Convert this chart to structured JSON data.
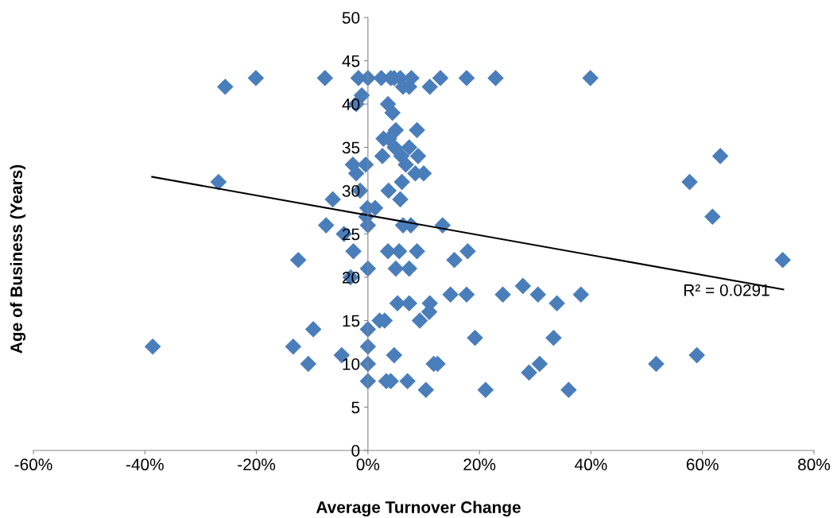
{
  "chart_data": {
    "type": "scatter",
    "xlabel": "Average Turnover Change",
    "ylabel": "Age of Business (Years)",
    "xlim": [
      -60,
      80
    ],
    "xticks": [
      {
        "value": -60,
        "label": "-60%"
      },
      {
        "value": -40,
        "label": "-40%"
      },
      {
        "value": -20,
        "label": "-20%"
      },
      {
        "value": 0,
        "label": "0%"
      },
      {
        "value": 20,
        "label": "20%"
      },
      {
        "value": 40,
        "label": "40%"
      },
      {
        "value": 60,
        "label": "60%"
      },
      {
        "value": 80,
        "label": "80%"
      }
    ],
    "ylim": [
      0,
      50
    ],
    "yticks": [
      0,
      5,
      10,
      15,
      20,
      25,
      30,
      35,
      40,
      45,
      50
    ],
    "grid": false,
    "legend": false,
    "marker": "diamond",
    "series": [
      {
        "color": "#4a7ebb",
        "x": [
          -20.1,
          -7.7,
          -1.7,
          0,
          2.4,
          4.1,
          4.7,
          5.8,
          7.8,
          13,
          17.7,
          22.9,
          39.9,
          -25.6,
          6.3,
          7.4,
          11.1,
          -1.1,
          -2.1,
          3.6,
          4.4,
          5.0,
          8.8,
          2.8,
          3.8,
          4.8,
          7.4,
          2.6,
          6.0,
          9.0,
          -2.7,
          -0.4,
          6.8,
          -2.1,
          8.5,
          10.0,
          6.1,
          -26.8,
          3.7,
          -1.4,
          5.8,
          -6.3,
          -0.1,
          1.3,
          -0.3,
          -7.5,
          0,
          6.3,
          7.7,
          13.4,
          -4.3,
          -2.6,
          3.6,
          5.6,
          8.8,
          -12.5,
          15.5,
          17.9,
          0,
          5.0,
          7.4,
          -3.1,
          14.8,
          17.7,
          24.2,
          30.5,
          38.2,
          27.8,
          5.3,
          7.4,
          11.1,
          33.9,
          11.0,
          2.1,
          3.0,
          9.3,
          0,
          -9.8,
          19.2,
          33.3,
          0,
          -13.4,
          -38.6,
          4.7,
          -4.7,
          59.0,
          0,
          -10.7,
          11.8,
          12.5,
          30.8,
          51.7,
          28.9,
          0,
          3.3,
          4.1,
          7.1,
          10.4,
          21.1,
          36.0,
          63.2,
          57.7,
          61.8,
          74.4
        ],
        "values": [
          43,
          43,
          43,
          43,
          43,
          43,
          43,
          43,
          43,
          43,
          43,
          43,
          43,
          42,
          42,
          42,
          42,
          41,
          40,
          40,
          39,
          37,
          37,
          36,
          36,
          35,
          35,
          34,
          34,
          34,
          33,
          33,
          33,
          32,
          32,
          32,
          31,
          31,
          30,
          30,
          29,
          29,
          28,
          28,
          27,
          26,
          26,
          26,
          26,
          26,
          25,
          23,
          23,
          23,
          23,
          22,
          22,
          23,
          21,
          21,
          21,
          20,
          18,
          18,
          18,
          18,
          18,
          19,
          17,
          17,
          17,
          17,
          16,
          15,
          15,
          15,
          14,
          14,
          13,
          13,
          12,
          12,
          12,
          11,
          11,
          11,
          10,
          10,
          10,
          10,
          10,
          10,
          9,
          8,
          8,
          8,
          8,
          7,
          7,
          7,
          34,
          31,
          27,
          22
        ]
      },
      {
        "type": "line",
        "color": "#000000",
        "marker": "none",
        "x": [
          -38.7,
          74.5
        ],
        "values": [
          31.6,
          18.6
        ]
      }
    ],
    "annotations": [
      {
        "text": "R² = 0.0291",
        "x": 74.5,
        "y": 18.6
      }
    ]
  }
}
